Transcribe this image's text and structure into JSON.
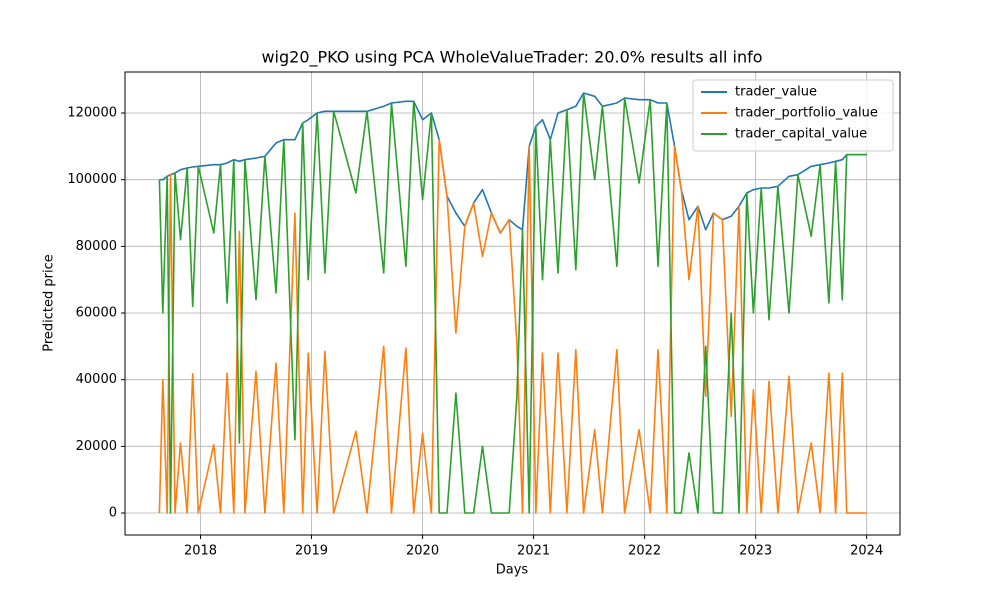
{
  "chart_data": {
    "type": "line",
    "title": "wig20_PKO using PCA WholeValueTrader: 20.0% results all info",
    "xlabel": "Days",
    "ylabel": "Predicted price",
    "x": [
      2017.63,
      2017.66,
      2017.7,
      2017.73,
      2017.77,
      2017.82,
      2017.88,
      2017.93,
      2017.98,
      2018.12,
      2018.18,
      2018.24,
      2018.3,
      2018.35,
      2018.4,
      2018.5,
      2018.58,
      2018.68,
      2018.75,
      2018.85,
      2018.92,
      2018.97,
      2019.05,
      2019.12,
      2019.2,
      2019.4,
      2019.5,
      2019.65,
      2019.72,
      2019.85,
      2019.92,
      2020.0,
      2020.08,
      2020.15,
      2020.22,
      2020.3,
      2020.38,
      2020.46,
      2020.54,
      2020.62,
      2020.7,
      2020.78,
      2020.85,
      2020.9,
      2020.96,
      2021.02,
      2021.08,
      2021.15,
      2021.22,
      2021.3,
      2021.38,
      2021.45,
      2021.55,
      2021.62,
      2021.75,
      2021.82,
      2021.95,
      2022.05,
      2022.12,
      2022.2,
      2022.27,
      2022.33,
      2022.4,
      2022.48,
      2022.55,
      2022.62,
      2022.7,
      2022.78,
      2022.85,
      2022.92,
      2022.98,
      2023.05,
      2023.12,
      2023.2,
      2023.3,
      2023.38,
      2023.5,
      2023.58,
      2023.66,
      2023.72,
      2023.78,
      2023.82,
      2024.0
    ],
    "series": [
      {
        "name": "trader_value",
        "color": "#1f77b4",
        "values": [
          100000,
          100000,
          101000,
          101500,
          102000,
          103000,
          103500,
          103800,
          104000,
          104500,
          104500,
          105000,
          106000,
          105500,
          106000,
          106500,
          107000,
          111000,
          112000,
          112000,
          117000,
          118000,
          120000,
          120500,
          120500,
          120500,
          120500,
          122000,
          123000,
          123500,
          123500,
          118000,
          120000,
          112000,
          95000,
          90000,
          86000,
          93000,
          97000,
          90000,
          84000,
          88000,
          86000,
          85000,
          110000,
          116000,
          118000,
          112000,
          120000,
          121000,
          122000,
          126000,
          125000,
          122000,
          123000,
          124500,
          124000,
          124000,
          123000,
          123000,
          110000,
          97000,
          88000,
          92000,
          85000,
          90000,
          88000,
          89000,
          92000,
          96000,
          97000,
          97500,
          97500,
          98000,
          101000,
          101500,
          104000,
          104500,
          105000,
          105500,
          106000,
          107500,
          107500
        ]
      },
      {
        "name": "trader_portfolio_value",
        "color": "#ff7f0e",
        "values": [
          0,
          40000,
          0,
          101500,
          0,
          21000,
          0,
          41800,
          0,
          20500,
          0,
          42000,
          0,
          84500,
          0,
          42500,
          0,
          45000,
          0,
          90000,
          0,
          48000,
          0,
          48500,
          0,
          24500,
          0,
          50000,
          0,
          49500,
          0,
          24000,
          0,
          112000,
          95000,
          54000,
          86000,
          93000,
          77000,
          90000,
          84000,
          88000,
          51000,
          0,
          110000,
          0,
          48000,
          0,
          48000,
          0,
          49000,
          0,
          25000,
          0,
          49000,
          0,
          25000,
          0,
          49000,
          0,
          110000,
          97000,
          70000,
          92000,
          35000,
          90000,
          88000,
          29000,
          92000,
          0,
          37000,
          0,
          39500,
          0,
          41000,
          0,
          21000,
          0,
          42000,
          0,
          42000,
          0,
          0
        ]
      },
      {
        "name": "trader_capital_value",
        "color": "#2ca02c",
        "values": [
          100000,
          60000,
          101000,
          0,
          102000,
          82000,
          103500,
          62000,
          104000,
          84000,
          104500,
          63000,
          106000,
          21000,
          106000,
          64000,
          107000,
          66000,
          112000,
          22000,
          117000,
          70000,
          120000,
          72000,
          120500,
          96000,
          120500,
          72000,
          123000,
          74000,
          123500,
          94000,
          120000,
          0,
          0,
          36000,
          0,
          0,
          20000,
          0,
          0,
          0,
          35000,
          85000,
          0,
          116000,
          70000,
          112000,
          72000,
          121000,
          73000,
          126000,
          100000,
          122000,
          74000,
          124500,
          99000,
          124000,
          74000,
          123000,
          0,
          0,
          18000,
          0,
          50000,
          0,
          0,
          60000,
          0,
          96000,
          60000,
          97500,
          58000,
          98000,
          60000,
          101500,
          83000,
          104500,
          63000,
          105500,
          64000,
          107500,
          107500
        ]
      }
    ],
    "xlim": [
      2017.32,
      2024.3
    ],
    "xticks": [
      2018,
      2019,
      2020,
      2021,
      2022,
      2023,
      2024
    ],
    "ylim": [
      -6600,
      132300
    ],
    "yticks": [
      0,
      20000,
      40000,
      60000,
      80000,
      100000,
      120000
    ],
    "grid": true,
    "legend": "upper right"
  }
}
